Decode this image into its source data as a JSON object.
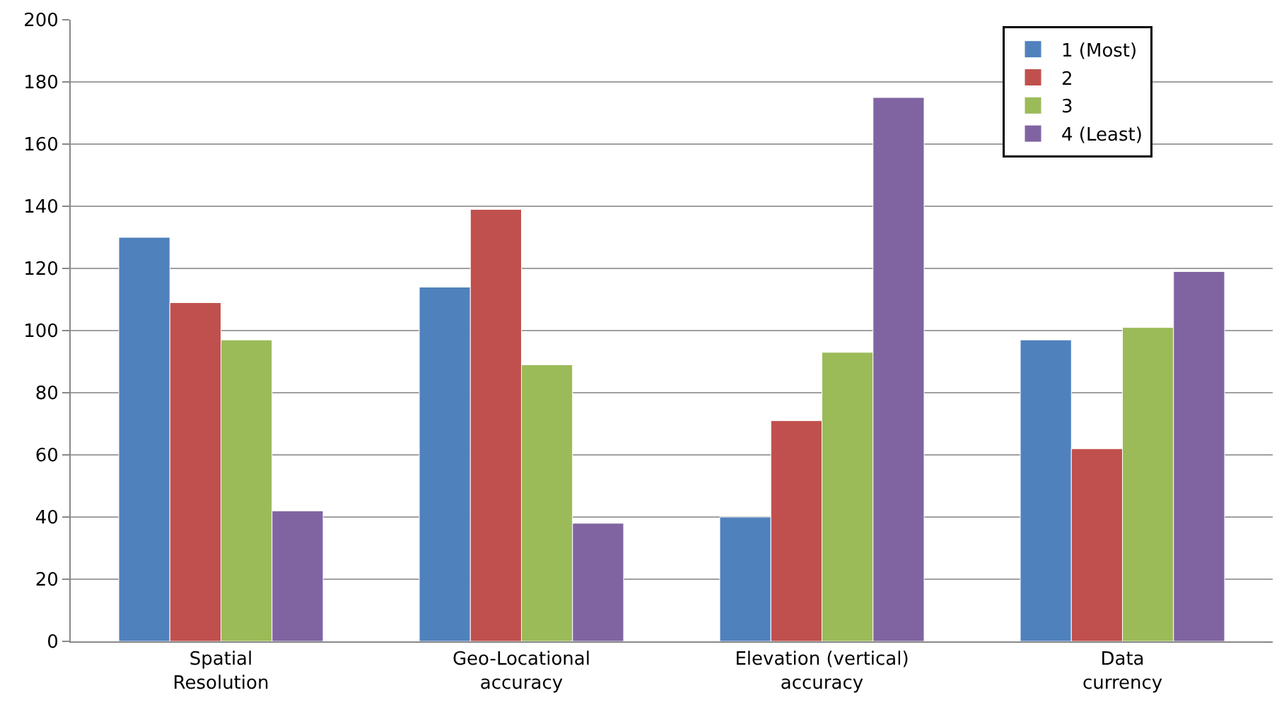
{
  "chart_data": {
    "type": "bar",
    "categories": [
      "Spatial\nResolution",
      "Geo-Locational\naccuracy",
      "Elevation (vertical)\naccuracy",
      "Data\ncurrency"
    ],
    "series": [
      {
        "name": "1 (Most)",
        "color": "#4f81bd",
        "values": [
          130,
          114,
          40,
          97
        ]
      },
      {
        "name": "2",
        "color": "#c0504d",
        "values": [
          109,
          139,
          71,
          62
        ]
      },
      {
        "name": "3",
        "color": "#9bbb59",
        "values": [
          97,
          89,
          93,
          101
        ]
      },
      {
        "name": "4 (Least)",
        "color": "#8064a2",
        "values": [
          42,
          38,
          175,
          119
        ]
      }
    ],
    "ylim": [
      0,
      200
    ],
    "yticks": [
      0,
      20,
      40,
      60,
      80,
      100,
      120,
      140,
      160,
      180,
      200
    ],
    "grid": "y",
    "legend": "top right"
  }
}
